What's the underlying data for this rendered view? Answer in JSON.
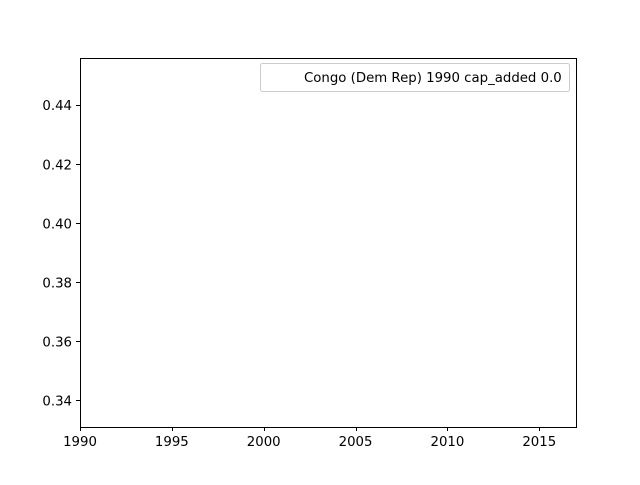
{
  "chart_data": {
    "type": "line",
    "title": "",
    "xlabel": "",
    "ylabel": "",
    "xlim": [
      1990,
      2017
    ],
    "ylim": [
      0.331,
      0.456
    ],
    "x_ticks": [
      {
        "value": 1990,
        "label": "1990"
      },
      {
        "value": 1995,
        "label": "1995"
      },
      {
        "value": 2000,
        "label": "2000"
      },
      {
        "value": 2005,
        "label": "2005"
      },
      {
        "value": 2010,
        "label": "2010"
      },
      {
        "value": 2015,
        "label": "2015"
      }
    ],
    "y_ticks": [
      {
        "value": 0.34,
        "label": "0.34"
      },
      {
        "value": 0.36,
        "label": "0.36"
      },
      {
        "value": 0.38,
        "label": "0.38"
      },
      {
        "value": 0.4,
        "label": "0.40"
      },
      {
        "value": 0.42,
        "label": "0.42"
      },
      {
        "value": 0.44,
        "label": "0.44"
      }
    ],
    "grid": false,
    "legend_position": "top-right",
    "series": [
      {
        "name": "Congo (Dem Rep) 1990 cap_added 0.0",
        "x": [],
        "y": [],
        "color": "#1f77b4"
      }
    ]
  },
  "colors": {
    "axes": "#000000",
    "legend_border": "#cccccc",
    "background": "#ffffff"
  }
}
